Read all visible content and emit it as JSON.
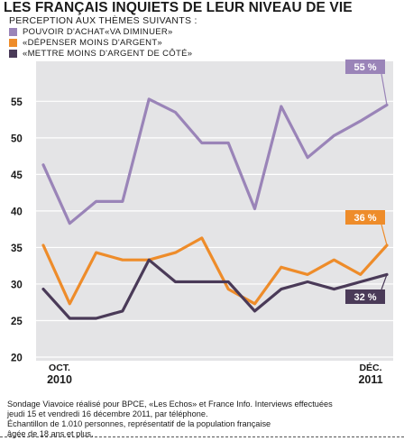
{
  "title": "LES FRANÇAIS INQUIETS DE LEUR NIVEAU DE VIE",
  "subtitle": "PERCEPTION AUX THÈMES SUIVANTS :",
  "colors": {
    "purple": "#9a84b8",
    "orange": "#ee8c2a",
    "dark": "#4a3a58",
    "panel": "#e4e4e6",
    "grid": "#ffffff"
  },
  "chart_data": {
    "type": "line",
    "y_ticks": [
      "20",
      "25",
      "30",
      "35",
      "40",
      "45",
      "50",
      "55"
    ],
    "ylim": [
      20,
      58
    ],
    "x_labels": [
      {
        "top": "OCT.",
        "bottom": "2010"
      },
      {
        "top": "DÉC.",
        "bottom": "2011"
      }
    ],
    "series": [
      {
        "name": "POUVOIR D'ACHAT«VA DIMINUER»",
        "color": "#9a84b8",
        "end_label": "55 %",
        "values": [
          46.3,
          38.3,
          41.3,
          41.3,
          55.3,
          53.5,
          49.3,
          49.3,
          40.3,
          54.3,
          47.3,
          50.3,
          52.3,
          54.5
        ]
      },
      {
        "name": "«DÉPENSER MOINS D'ARGENT»",
        "color": "#ee8c2a",
        "end_label": "36 %",
        "values": [
          35.3,
          27.3,
          34.3,
          33.3,
          33.3,
          34.3,
          36.3,
          29.3,
          27.3,
          32.3,
          31.3,
          33.3,
          31.3,
          35.3
        ]
      },
      {
        "name": "«METTRE MOINS D'ARGENT DE CÔTÉ»",
        "color": "#4a3a58",
        "end_label": "32 %",
        "values": [
          29.3,
          25.3,
          25.3,
          26.3,
          33.3,
          30.3,
          30.3,
          30.3,
          26.3,
          29.3,
          30.3,
          29.3,
          30.3,
          31.3
        ]
      }
    ]
  },
  "footer": {
    "lines": [
      "Sondage Viavoice réalisé pour BPCE, «Les Echos» et France Info. Interviews effectuées",
      "jeudi 15 et vendredi 16 décembre 2011, par téléphone.",
      "Échantillon de 1.010 personnes, représentatif de la population française",
      "âgée de 18 ans et plus."
    ]
  }
}
